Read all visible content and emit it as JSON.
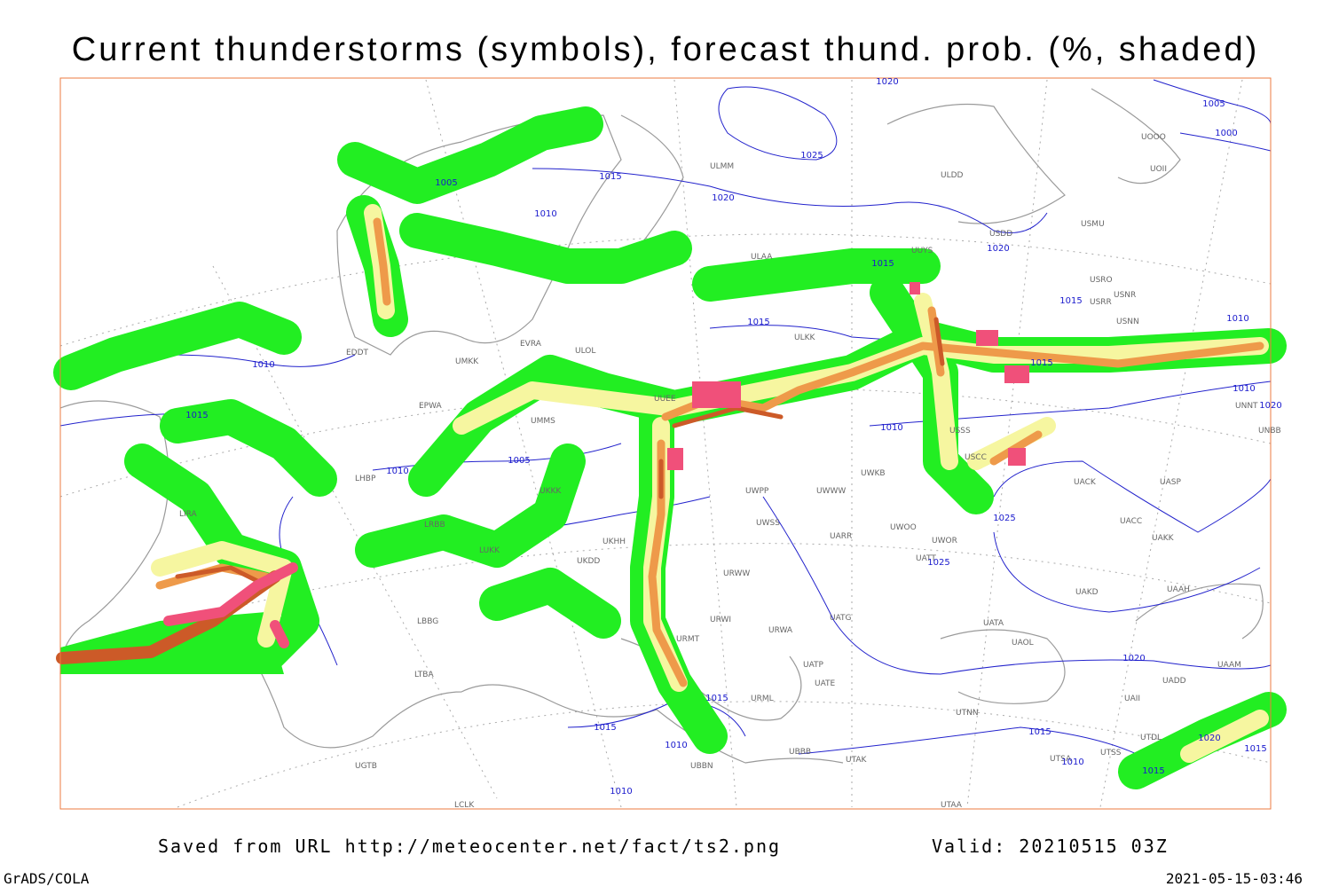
{
  "header": {
    "title": "Current thunderstorms (symbols), forecast thund. prob. (%, shaded)"
  },
  "footer": {
    "saved": "Saved from URL http://meteocenter.net/fact/ts2.png",
    "valid": "Valid: 20210515 03Z",
    "software": "GrADS/COLA",
    "timestamp": "2021-05-15-03:46"
  },
  "isobar_labels": [
    "1020",
    "1025",
    "1005",
    "1000",
    "1015",
    "1020",
    "1020",
    "1005",
    "1010",
    "1015",
    "1015",
    "1010",
    "1015",
    "1010",
    "1015",
    "1005",
    "1010",
    "1010",
    "1015",
    "1010",
    "1020",
    "1025",
    "1025",
    "1020",
    "1015",
    "1015",
    "1010",
    "1015",
    "1020",
    "1015",
    "1010",
    "1010",
    "1015"
  ],
  "stations": [
    "ULMM",
    "ULDD",
    "USDD",
    "USMU",
    "USRO",
    "USNR",
    "USRR",
    "USNN",
    "ULAA",
    "UUYS",
    "ULKK",
    "EDDT",
    "UMKK",
    "EPWA",
    "EVRA",
    "ULOL",
    "UMMS",
    "UUEE",
    "UWPP",
    "UWWW",
    "UWSS",
    "UWKB",
    "USCC",
    "USSS",
    "UACK",
    "UASP",
    "UACC",
    "UAKK",
    "UAKD",
    "UAAH",
    "UAAM",
    "UATA",
    "UAOL",
    "UATG",
    "UATE",
    "UATP",
    "URWA",
    "URWI",
    "URML",
    "URMT",
    "URWW",
    "UKHH",
    "UKDD",
    "LUKK",
    "LBBG",
    "LTBA",
    "UBBB",
    "UTAK",
    "UTNN",
    "UTSA",
    "UTSS",
    "UTAA",
    "LCLK",
    "UNBB",
    "UNNT",
    "UOOO",
    "UOII",
    "LIRA",
    "LHBP",
    "UKKK",
    "UWOO",
    "UWOR",
    "UATT",
    "UARR",
    "UAII",
    "UTDL",
    "UADD",
    "LRBB",
    "UGTB",
    "UBBN"
  ]
}
